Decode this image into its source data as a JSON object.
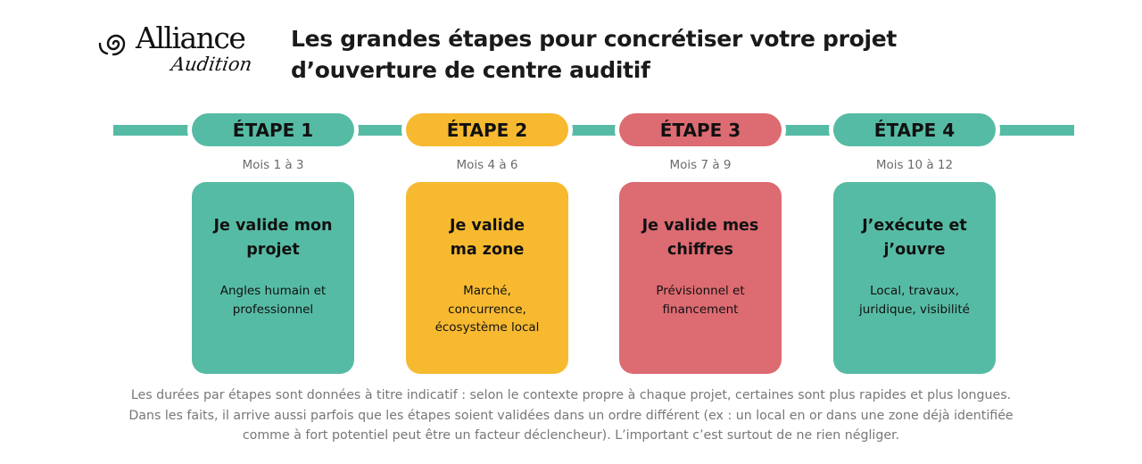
{
  "logo": {
    "word": "Alliance",
    "sub": "Audition"
  },
  "title": {
    "line1": "Les grandes étapes pour concrétiser votre projet",
    "line2": "d’ouverture de centre auditif"
  },
  "colors": {
    "green": "#56bba4",
    "yellow": "#f7b930",
    "red": "#dd6b72"
  },
  "steps": [
    {
      "label": "ÉTAPE 1",
      "months": "Mois 1 à 3",
      "title": "Je valide mon\nprojet",
      "desc": "Angles humain et\nprofessionnel",
      "color": "green"
    },
    {
      "label": "ÉTAPE 2",
      "months": "Mois 4 à 6",
      "title": "Je valide\nma zone",
      "desc": "Marché,\nconcurrence,\nécosystème local",
      "color": "yellow"
    },
    {
      "label": "ÉTAPE 3",
      "months": "Mois 7 à 9",
      "title": "Je valide mes\nchiffres",
      "desc": "Prévisionnel et\nfinancement",
      "color": "red"
    },
    {
      "label": "ÉTAPE 4",
      "months": "Mois 10 à 12",
      "title": "J’exécute et\nj’ouvre",
      "desc": "Local, travaux,\njuridique, visibilité",
      "color": "green"
    }
  ],
  "note": {
    "line1": "Les durées par étapes sont données à titre indicatif : selon le contexte propre à chaque projet, certaines sont plus rapides et plus longues.",
    "line2": "Dans les faits, il arrive aussi parfois que les étapes soient validées dans un ordre différent (ex : un local en or dans une zone déjà identifiée",
    "line3": "comme à fort potentiel peut être un facteur déclencheur). L’important c’est surtout de ne rien négliger."
  }
}
